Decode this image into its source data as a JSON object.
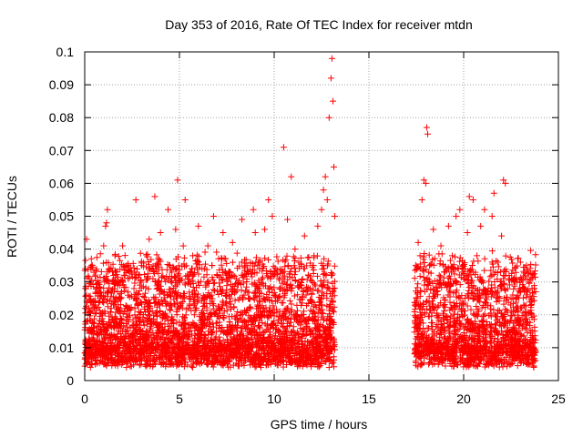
{
  "chart_data": {
    "type": "scatter",
    "title": "Day 353 of 2016, Rate Of TEC Index for receiver mtdn",
    "xlabel": "GPS time / hours",
    "ylabel": "ROTI / TECUs",
    "xlim": [
      0,
      25
    ],
    "ylim": [
      0,
      0.1
    ],
    "x_ticks": [
      "0",
      "5",
      "10",
      "15",
      "20",
      "25"
    ],
    "y_ticks": [
      "0",
      "0.01",
      "0.02",
      "0.03",
      "0.04",
      "0.05",
      "0.06",
      "0.07",
      "0.08",
      "0.09",
      "0.1"
    ],
    "grid": true,
    "marker": "plus",
    "colors": {
      "series": "#ff0000",
      "grid": "#a0a0a0",
      "axis": "#000000"
    },
    "data_gap_hours": [
      13.2,
      17.4
    ],
    "series": [
      {
        "points": [
          [
            0.05,
            0.028
          ],
          [
            0.1,
            0.043
          ],
          [
            0.15,
            0.012
          ],
          [
            0.2,
            0.007
          ],
          [
            0.3,
            0.021
          ],
          [
            0.4,
            0.035
          ],
          [
            0.5,
            0.016
          ],
          [
            0.6,
            0.028
          ],
          [
            0.7,
            0.009
          ],
          [
            0.8,
            0.025
          ],
          [
            0.9,
            0.018
          ],
          [
            1.0,
            0.041
          ],
          [
            1.05,
            0.03
          ],
          [
            1.1,
            0.047
          ],
          [
            1.15,
            0.048
          ],
          [
            1.2,
            0.052
          ],
          [
            1.3,
            0.034
          ],
          [
            1.4,
            0.022
          ],
          [
            1.5,
            0.018
          ],
          [
            1.6,
            0.038
          ],
          [
            1.7,
            0.03
          ],
          [
            1.8,
            0.015
          ],
          [
            2.0,
            0.041
          ],
          [
            2.1,
            0.021
          ],
          [
            2.3,
            0.035
          ],
          [
            2.5,
            0.014
          ],
          [
            2.6,
            0.028
          ],
          [
            2.7,
            0.055
          ],
          [
            2.8,
            0.019
          ],
          [
            3.0,
            0.035
          ],
          [
            3.2,
            0.024
          ],
          [
            3.4,
            0.043
          ],
          [
            3.6,
            0.031
          ],
          [
            3.7,
            0.056
          ],
          [
            3.8,
            0.017
          ],
          [
            4.0,
            0.045
          ],
          [
            4.2,
            0.027
          ],
          [
            4.4,
            0.052
          ],
          [
            4.6,
            0.033
          ],
          [
            4.8,
            0.046
          ],
          [
            4.9,
            0.061
          ],
          [
            5.0,
            0.022
          ],
          [
            5.2,
            0.041
          ],
          [
            5.3,
            0.055
          ],
          [
            5.5,
            0.03
          ],
          [
            5.7,
            0.038
          ],
          [
            6.0,
            0.047
          ],
          [
            6.2,
            0.025
          ],
          [
            6.5,
            0.041
          ],
          [
            6.8,
            0.05
          ],
          [
            7.0,
            0.032
          ],
          [
            7.3,
            0.045
          ],
          [
            7.5,
            0.026
          ],
          [
            7.8,
            0.042
          ],
          [
            8.0,
            0.031
          ],
          [
            8.3,
            0.049
          ],
          [
            8.6,
            0.035
          ],
          [
            8.9,
            0.052
          ],
          [
            9.0,
            0.045
          ],
          [
            9.2,
            0.028
          ],
          [
            9.5,
            0.046
          ],
          [
            9.7,
            0.055
          ],
          [
            9.9,
            0.05
          ],
          [
            10.1,
            0.033
          ],
          [
            10.3,
            0.021
          ],
          [
            10.5,
            0.071
          ],
          [
            10.7,
            0.049
          ],
          [
            10.9,
            0.062
          ],
          [
            11.1,
            0.04
          ],
          [
            11.3,
            0.03
          ],
          [
            11.6,
            0.044
          ],
          [
            11.9,
            0.028
          ],
          [
            12.1,
            0.038
          ],
          [
            12.3,
            0.047
          ],
          [
            12.5,
            0.052
          ],
          [
            12.6,
            0.058
          ],
          [
            12.7,
            0.062
          ],
          [
            12.8,
            0.055
          ],
          [
            12.9,
            0.08
          ],
          [
            13.0,
            0.092
          ],
          [
            13.05,
            0.098
          ],
          [
            13.1,
            0.085
          ],
          [
            13.15,
            0.065
          ],
          [
            13.2,
            0.05
          ],
          [
            0.2,
            0.01
          ],
          [
            0.5,
            0.011
          ],
          [
            0.8,
            0.012
          ],
          [
            1.1,
            0.013
          ],
          [
            1.4,
            0.014
          ],
          [
            1.7,
            0.009
          ],
          [
            2.0,
            0.015
          ],
          [
            2.4,
            0.012
          ],
          [
            2.8,
            0.008
          ],
          [
            3.1,
            0.013
          ],
          [
            3.5,
            0.016
          ],
          [
            3.9,
            0.011
          ],
          [
            4.3,
            0.014
          ],
          [
            4.7,
            0.01
          ],
          [
            5.1,
            0.013
          ],
          [
            5.5,
            0.017
          ],
          [
            5.9,
            0.011
          ],
          [
            6.3,
            0.014
          ],
          [
            6.7,
            0.012
          ],
          [
            7.1,
            0.016
          ],
          [
            7.5,
            0.01
          ],
          [
            7.9,
            0.013
          ],
          [
            8.3,
            0.015
          ],
          [
            8.7,
            0.011
          ],
          [
            9.1,
            0.014
          ],
          [
            9.5,
            0.009
          ],
          [
            9.9,
            0.012
          ],
          [
            10.3,
            0.015
          ],
          [
            10.7,
            0.01
          ],
          [
            11.1,
            0.013
          ],
          [
            11.5,
            0.011
          ],
          [
            11.9,
            0.014
          ],
          [
            12.3,
            0.012
          ],
          [
            12.7,
            0.016
          ],
          [
            13.0,
            0.013
          ],
          [
            0.3,
            0.004
          ],
          [
            1.0,
            0.005
          ],
          [
            2.2,
            0.004
          ],
          [
            3.3,
            0.006
          ],
          [
            4.5,
            0.005
          ],
          [
            5.7,
            0.004
          ],
          [
            6.9,
            0.006
          ],
          [
            8.1,
            0.005
          ],
          [
            9.3,
            0.004
          ],
          [
            10.5,
            0.006
          ],
          [
            11.7,
            0.005
          ],
          [
            12.9,
            0.004
          ],
          [
            17.5,
            0.025
          ],
          [
            17.6,
            0.042
          ],
          [
            17.7,
            0.038
          ],
          [
            17.8,
            0.055
          ],
          [
            17.9,
            0.061
          ],
          [
            18.0,
            0.06
          ],
          [
            18.05,
            0.077
          ],
          [
            18.1,
            0.075
          ],
          [
            18.2,
            0.035
          ],
          [
            18.4,
            0.046
          ],
          [
            18.6,
            0.028
          ],
          [
            18.8,
            0.041
          ],
          [
            19.0,
            0.033
          ],
          [
            19.2,
            0.047
          ],
          [
            19.4,
            0.038
          ],
          [
            19.6,
            0.05
          ],
          [
            19.8,
            0.052
          ],
          [
            20.0,
            0.031
          ],
          [
            20.2,
            0.045
          ],
          [
            20.3,
            0.056
          ],
          [
            20.5,
            0.055
          ],
          [
            20.7,
            0.038
          ],
          [
            20.9,
            0.047
          ],
          [
            21.1,
            0.052
          ],
          [
            21.3,
            0.028
          ],
          [
            21.5,
            0.05
          ],
          [
            21.6,
            0.057
          ],
          [
            21.8,
            0.036
          ],
          [
            22.0,
            0.044
          ],
          [
            22.1,
            0.061
          ],
          [
            22.2,
            0.06
          ],
          [
            22.4,
            0.032
          ],
          [
            22.6,
            0.025
          ],
          [
            22.8,
            0.03
          ],
          [
            23.0,
            0.036
          ],
          [
            23.2,
            0.028
          ],
          [
            23.4,
            0.033
          ],
          [
            23.6,
            0.024
          ],
          [
            23.8,
            0.027
          ],
          [
            17.6,
            0.01
          ],
          [
            18.0,
            0.012
          ],
          [
            18.4,
            0.011
          ],
          [
            18.8,
            0.014
          ],
          [
            19.2,
            0.012
          ],
          [
            19.6,
            0.015
          ],
          [
            20.0,
            0.011
          ],
          [
            20.4,
            0.013
          ],
          [
            20.8,
            0.012
          ],
          [
            21.2,
            0.014
          ],
          [
            21.6,
            0.01
          ],
          [
            22.0,
            0.012
          ],
          [
            22.4,
            0.011
          ],
          [
            22.8,
            0.009
          ],
          [
            23.2,
            0.01
          ],
          [
            23.6,
            0.008
          ],
          [
            17.8,
            0.005
          ],
          [
            18.9,
            0.006
          ],
          [
            20.1,
            0.005
          ],
          [
            21.3,
            0.006
          ],
          [
            22.5,
            0.005
          ],
          [
            23.7,
            0.004
          ]
        ]
      }
    ]
  }
}
